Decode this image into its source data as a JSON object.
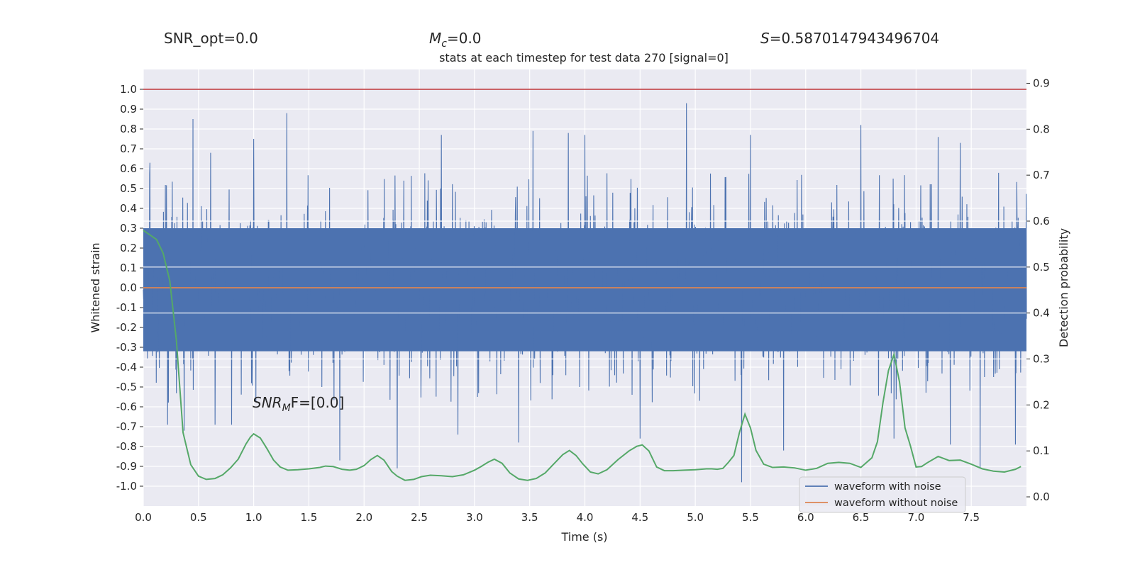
{
  "header": {
    "snr_opt": "SNR_opt=0.0",
    "mc_symbol": "M",
    "mc_sub": "c",
    "mc_value": "=0.0",
    "s_symbol": "S",
    "s_value": "=0.5870147943496704"
  },
  "annotation": {
    "symbol": "SNR",
    "sub": "M",
    "tail": "F=[0.0]"
  },
  "colors": {
    "background": "#eaeaf2",
    "grid": "#ffffff",
    "noise": "#4c72b0",
    "clean": "#dd8452",
    "probability": "#55a868",
    "threshold": "#c44e52"
  },
  "chart_data": {
    "type": "line",
    "title": "stats at each timestep for test data 270 [signal=0]",
    "xlabel": "Time (s)",
    "ylabel": "Whitened strain",
    "y2label": "Detection probability",
    "xlim": [
      0.0,
      8.0
    ],
    "ylim": [
      -1.1,
      1.1
    ],
    "y2lim": [
      -0.02,
      0.93
    ],
    "xticks": [
      "0.0",
      "0.5",
      "1.0",
      "1.5",
      "2.0",
      "2.5",
      "3.0",
      "3.5",
      "4.0",
      "4.5",
      "5.0",
      "5.5",
      "6.0",
      "6.5",
      "7.0",
      "7.5"
    ],
    "yticks": [
      "1.0",
      "0.9",
      "0.8",
      "0.7",
      "0.6",
      "0.5",
      "0.4",
      "0.3",
      "0.2",
      "0.1",
      "0.0",
      "-0.1",
      "-0.2",
      "-0.3",
      "-0.4",
      "-0.5",
      "-0.6",
      "-0.7",
      "-0.8",
      "-0.9",
      "-1.0"
    ],
    "y2ticks": [
      "0.9",
      "0.8",
      "0.7",
      "0.6",
      "0.5",
      "0.4",
      "0.3",
      "0.2",
      "0.1",
      "0.0"
    ],
    "grid": true,
    "legend_position": "bottom-right",
    "series": [
      {
        "name": "waveform with noise",
        "axis": "left",
        "note_peaks": [
          [
            0.06,
            0.63
          ],
          [
            0.45,
            0.85
          ],
          [
            0.61,
            0.68
          ],
          [
            1.0,
            0.75
          ],
          [
            1.3,
            0.88
          ],
          [
            2.7,
            0.77
          ],
          [
            3.53,
            0.79
          ],
          [
            3.85,
            0.78
          ],
          [
            4.0,
            0.77
          ],
          [
            4.92,
            0.93
          ],
          [
            5.5,
            0.77
          ],
          [
            6.5,
            0.82
          ],
          [
            6.8,
            0.79
          ],
          [
            7.2,
            0.76
          ],
          [
            7.4,
            0.73
          ]
        ],
        "note_troughs": [
          [
            0.22,
            -0.69
          ],
          [
            0.37,
            -0.72
          ],
          [
            0.65,
            -0.69
          ],
          [
            0.8,
            -0.69
          ],
          [
            1.78,
            -0.87
          ],
          [
            2.3,
            -0.91
          ],
          [
            2.85,
            -0.74
          ],
          [
            3.4,
            -0.78
          ],
          [
            4.5,
            -0.76
          ],
          [
            5.42,
            -0.98
          ],
          [
            5.8,
            -0.82
          ],
          [
            6.8,
            -0.76
          ],
          [
            7.31,
            -0.79
          ],
          [
            7.58,
            -0.91
          ],
          [
            7.9,
            -0.79
          ]
        ],
        "envelope_upper": 0.3,
        "envelope_lower": -0.32
      },
      {
        "name": "waveform without noise",
        "axis": "left",
        "x": [
          0.0,
          8.0
        ],
        "y": [
          0.0,
          0.0
        ]
      },
      {
        "axis": "right",
        "x": [
          0.0,
          0.12,
          0.18,
          0.24,
          0.3,
          0.36,
          0.43,
          0.5,
          0.57,
          0.65,
          0.72,
          0.79,
          0.86,
          0.93,
          0.97,
          1.0,
          1.06,
          1.12,
          1.18,
          1.24,
          1.31,
          1.4,
          1.5,
          1.6,
          1.65,
          1.72,
          1.8,
          1.87,
          1.93,
          2.0,
          2.06,
          2.12,
          2.18,
          2.25,
          2.3,
          2.37,
          2.45,
          2.52,
          2.6,
          2.7,
          2.8,
          2.9,
          3.0,
          3.06,
          3.12,
          3.18,
          3.25,
          3.32,
          3.4,
          3.48,
          3.56,
          3.64,
          3.72,
          3.8,
          3.86,
          3.92,
          3.98,
          4.05,
          4.12,
          4.2,
          4.3,
          4.4,
          4.47,
          4.52,
          4.58,
          4.65,
          4.72,
          4.8,
          4.9,
          5.0,
          5.1,
          5.15,
          5.2,
          5.25,
          5.3,
          5.35,
          5.4,
          5.45,
          5.5,
          5.55,
          5.62,
          5.7,
          5.8,
          5.9,
          6.0,
          6.1,
          6.2,
          6.3,
          6.4,
          6.5,
          6.6,
          6.65,
          6.7,
          6.75,
          6.8,
          6.85,
          6.9,
          6.95,
          7.0,
          7.05,
          7.1,
          7.2,
          7.3,
          7.4,
          7.5,
          7.6,
          7.7,
          7.8,
          7.9,
          7.95
        ],
        "y": [
          0.58,
          0.56,
          0.53,
          0.47,
          0.34,
          0.14,
          0.07,
          0.045,
          0.038,
          0.04,
          0.048,
          0.063,
          0.082,
          0.115,
          0.13,
          0.137,
          0.128,
          0.105,
          0.08,
          0.065,
          0.058,
          0.059,
          0.061,
          0.064,
          0.067,
          0.066,
          0.06,
          0.058,
          0.06,
          0.068,
          0.081,
          0.09,
          0.08,
          0.055,
          0.045,
          0.036,
          0.038,
          0.044,
          0.047,
          0.046,
          0.044,
          0.048,
          0.058,
          0.066,
          0.075,
          0.082,
          0.073,
          0.052,
          0.039,
          0.036,
          0.04,
          0.052,
          0.072,
          0.092,
          0.101,
          0.09,
          0.072,
          0.054,
          0.05,
          0.059,
          0.081,
          0.1,
          0.11,
          0.113,
          0.1,
          0.065,
          0.057,
          0.057,
          0.058,
          0.059,
          0.061,
          0.061,
          0.06,
          0.062,
          0.075,
          0.09,
          0.14,
          0.18,
          0.15,
          0.101,
          0.071,
          0.064,
          0.065,
          0.063,
          0.058,
          0.062,
          0.073,
          0.075,
          0.073,
          0.064,
          0.085,
          0.12,
          0.205,
          0.275,
          0.31,
          0.25,
          0.15,
          0.11,
          0.065,
          0.066,
          0.074,
          0.088,
          0.079,
          0.08,
          0.071,
          0.061,
          0.056,
          0.054,
          0.06,
          0.066
        ]
      },
      {
        "axis": "left",
        "x": [
          0.0,
          8.0
        ],
        "y": [
          1.0,
          1.0
        ]
      }
    ]
  }
}
